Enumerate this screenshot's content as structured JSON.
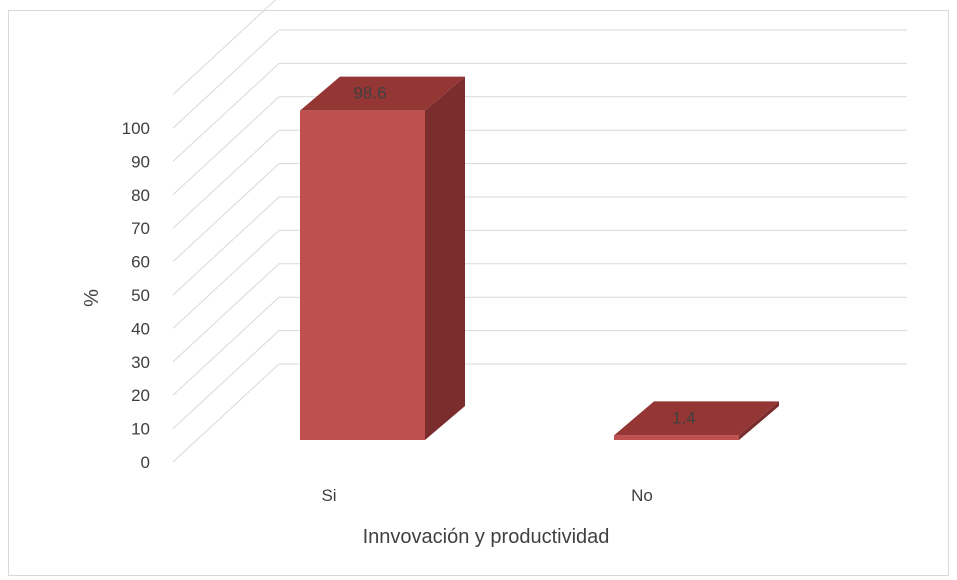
{
  "chart_data": {
    "type": "bar",
    "style": "3d-column",
    "categories": [
      "Si",
      "No"
    ],
    "values": [
      98.6,
      1.4
    ],
    "data_labels": [
      "98.6",
      "1.4"
    ],
    "xlabel": "Innvovación y productividad",
    "ylabel": "%",
    "ylim": [
      0,
      100
    ],
    "yticks": [
      "0",
      "10",
      "20",
      "30",
      "40",
      "50",
      "60",
      "70",
      "80",
      "90",
      "100"
    ],
    "grid": true,
    "legend": "none",
    "colors": {
      "front": "#c0504d",
      "top": "#943634",
      "side": "#7b2c2c",
      "grid": "#d9d9d9"
    }
  }
}
